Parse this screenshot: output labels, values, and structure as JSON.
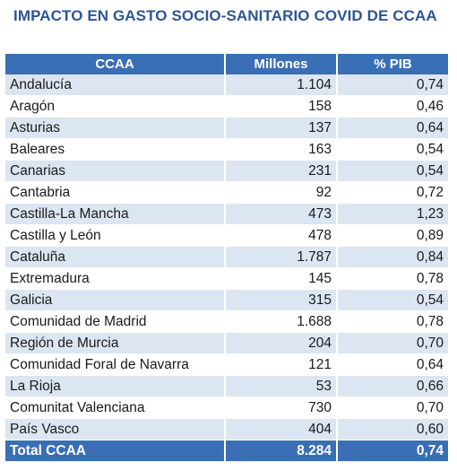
{
  "title": "IMPACTO EN GASTO SOCIO-SANITARIO COVID DE CCAA",
  "columns": [
    "CCAA",
    "Millones",
    "% PIB"
  ],
  "rows": [
    {
      "ccaa": "Andalucía",
      "millones": "1.104",
      "pib": "0,74"
    },
    {
      "ccaa": "Aragón",
      "millones": "158",
      "pib": "0,46"
    },
    {
      "ccaa": "Asturias",
      "millones": "137",
      "pib": "0,64"
    },
    {
      "ccaa": "Baleares",
      "millones": "163",
      "pib": "0,54"
    },
    {
      "ccaa": "Canarias",
      "millones": "231",
      "pib": "0,54"
    },
    {
      "ccaa": "Cantabria",
      "millones": "92",
      "pib": "0,72"
    },
    {
      "ccaa": "Castilla-La Mancha",
      "millones": "473",
      "pib": "1,23"
    },
    {
      "ccaa": "Castilla y León",
      "millones": "478",
      "pib": "0,89"
    },
    {
      "ccaa": "Cataluña",
      "millones": "1.787",
      "pib": "0,84"
    },
    {
      "ccaa": "Extremadura",
      "millones": "145",
      "pib": "0,78"
    },
    {
      "ccaa": "Galicia",
      "millones": "315",
      "pib": "0,54"
    },
    {
      "ccaa": "Comunidad de Madrid",
      "millones": "1.688",
      "pib": "0,78"
    },
    {
      "ccaa": "Región de Murcia",
      "millones": "204",
      "pib": "0,70"
    },
    {
      "ccaa": "Comunidad Foral de Navarra",
      "millones": "121",
      "pib": "0,64"
    },
    {
      "ccaa": "La Rioja",
      "millones": "53",
      "pib": "0,66"
    },
    {
      "ccaa": "Comunitat Valenciana",
      "millones": "730",
      "pib": "0,70"
    },
    {
      "ccaa": "País Vasco",
      "millones": "404",
      "pib": "0,60"
    }
  ],
  "total": {
    "ccaa": "Total CCAA",
    "millones": "8.284",
    "pib": "0,74"
  },
  "colors": {
    "title": "#2f5496",
    "header_bg": "#3a6fb6",
    "band": "#dce6f2"
  }
}
